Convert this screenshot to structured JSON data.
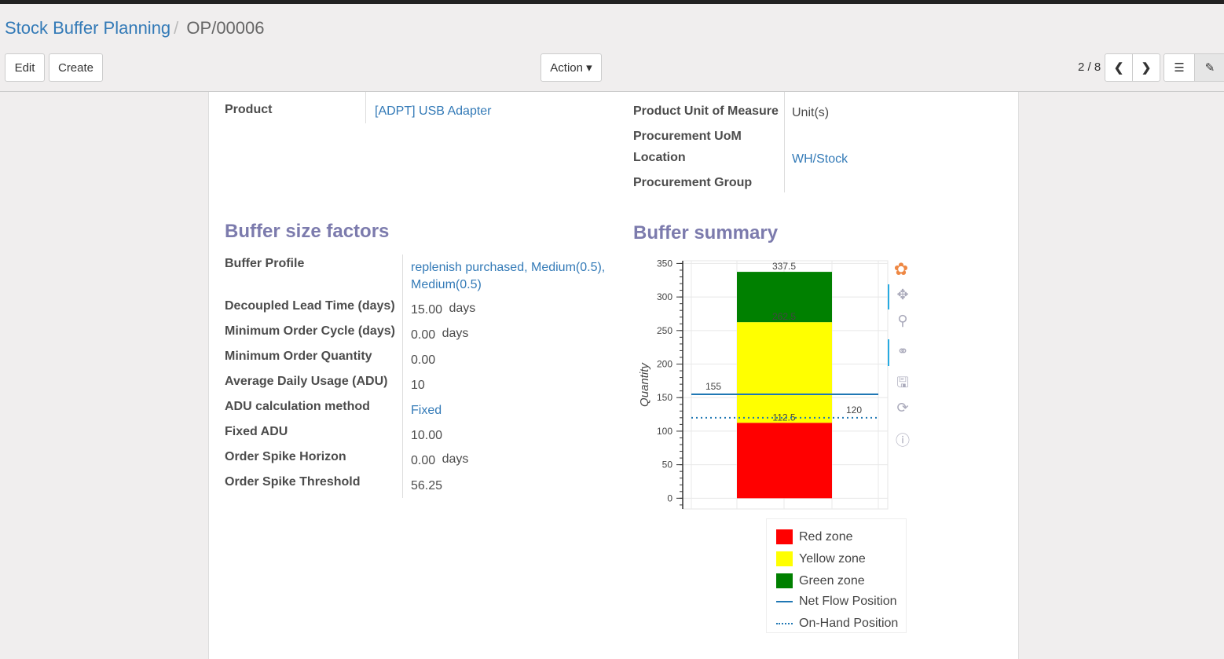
{
  "breadcrumb": {
    "parent": "Stock Buffer Planning",
    "current": "OP/00006"
  },
  "buttons": {
    "edit": "Edit",
    "create": "Create",
    "action": "Action ▾"
  },
  "pager": {
    "text": "2 / 8"
  },
  "form": {
    "product_label": "Product",
    "product_value": "[ADPT] USB Adapter",
    "uom_label": "Product Unit of Measure",
    "uom_value": "Unit(s)",
    "proc_uom_label": "Procurement UoM",
    "location_label": "Location",
    "location_value": "WH/Stock",
    "proc_group_label": "Procurement Group"
  },
  "factors": {
    "title": "Buffer size factors",
    "rows": [
      {
        "label": "Buffer Profile",
        "value": "replenish purchased, Medium(0.5),",
        "value2": "Medium(0.5)",
        "link": true
      },
      {
        "label": "Decoupled Lead Time (days)",
        "value": "15.00",
        "unit": "days"
      },
      {
        "label": "Minimum Order Cycle (days)",
        "value": "0.00",
        "unit": "days"
      },
      {
        "label": "Minimum Order Quantity",
        "value": "0.00"
      },
      {
        "label": "Average Daily Usage (ADU)",
        "value": "10"
      },
      {
        "label": "ADU calculation method",
        "value": "Fixed",
        "link": true
      },
      {
        "label": "Fixed ADU",
        "value": "10.00"
      },
      {
        "label": "Order Spike Horizon",
        "value": "0.00",
        "unit": "days"
      },
      {
        "label": "Order Spike Threshold",
        "value": "56.25"
      }
    ]
  },
  "summary": {
    "title": "Buffer summary"
  },
  "chart_data": {
    "type": "bar",
    "ylabel": "Quantity",
    "ylim": [
      -16,
      354
    ],
    "yticks": [
      0,
      50,
      100,
      150,
      200,
      250,
      300,
      350
    ],
    "grid": true,
    "stacked_bars": [
      {
        "name": "Red zone",
        "from": 0,
        "to": 112.5,
        "color": "#ff0000"
      },
      {
        "name": "Yellow zone",
        "from": 112.5,
        "to": 262.5,
        "color": "#ffff00"
      },
      {
        "name": "Green zone",
        "from": 262.5,
        "to": 337.5,
        "color": "#008000"
      }
    ],
    "bar_labels": [
      "112.5",
      "262.5",
      "337.5"
    ],
    "lines": [
      {
        "name": "Net Flow Position",
        "value": 155,
        "style": "solid",
        "color": "#1f77b4",
        "label": "155"
      },
      {
        "name": "On-Hand Position",
        "value": 120,
        "style": "dotted",
        "color": "#1f77b4",
        "label": "120"
      }
    ],
    "legend_position": "bottom-right"
  }
}
